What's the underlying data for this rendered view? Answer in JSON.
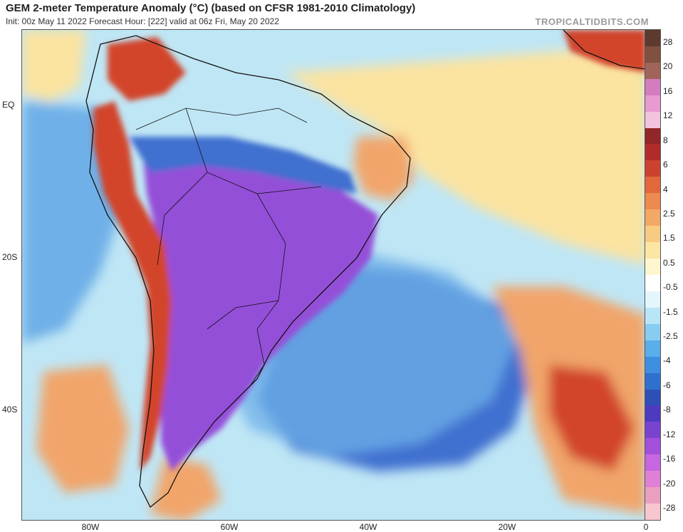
{
  "header": {
    "title": "GEM 2-meter Temperature Anomaly (°C) (based on CFSR 1981-2010 Climatology)",
    "subtitle": "Init: 00z May 11 2022   Forecast Hour: [222]   valid at 06z Fri, May 20 2022",
    "watermark": "TROPICALTIDBITS.COM"
  },
  "map": {
    "lat_labels": [
      "EQ",
      "20S",
      "40S"
    ],
    "lon_labels": [
      "80W",
      "60W",
      "40W",
      "20W",
      "0"
    ],
    "colors": {
      "ocean_base": "#bfe6f5",
      "cold_strong": "#9450d8",
      "cold_mid": "#3f6fd0",
      "cold_light": "#6fb0e8",
      "warm_light": "#fbe3a0",
      "warm_mid": "#f1a56a",
      "warm_strong": "#d2452c",
      "land_border": "#111111"
    }
  },
  "colorbar": {
    "labels": [
      "-28",
      "-20",
      "-16",
      "-12",
      "-8",
      "-6",
      "-4",
      "-2.5",
      "-1.5",
      "-0.5",
      "0.5",
      "1.5",
      "2.5",
      "4",
      "6",
      "8",
      "12",
      "16",
      "20",
      "28"
    ],
    "colors": [
      "#f7c6cf",
      "#ea9fc0",
      "#e07fd6",
      "#c766e0",
      "#a24fda",
      "#7a43cf",
      "#4c3bc0",
      "#2d4fb6",
      "#2f70cf",
      "#3f8fe0",
      "#5aaeea",
      "#87cdf2",
      "#b8e6f7",
      "#e3f6fb",
      "#ffffff",
      "#fdf6cf",
      "#fbe6a3",
      "#f8cb82",
      "#f3a866",
      "#ec8a4f",
      "#e2673b",
      "#cc4230",
      "#b02c2a",
      "#922527",
      "#f2c3dd",
      "#e79bd0",
      "#d47cc0",
      "#a0645a",
      "#805040",
      "#5c3a2e"
    ]
  }
}
